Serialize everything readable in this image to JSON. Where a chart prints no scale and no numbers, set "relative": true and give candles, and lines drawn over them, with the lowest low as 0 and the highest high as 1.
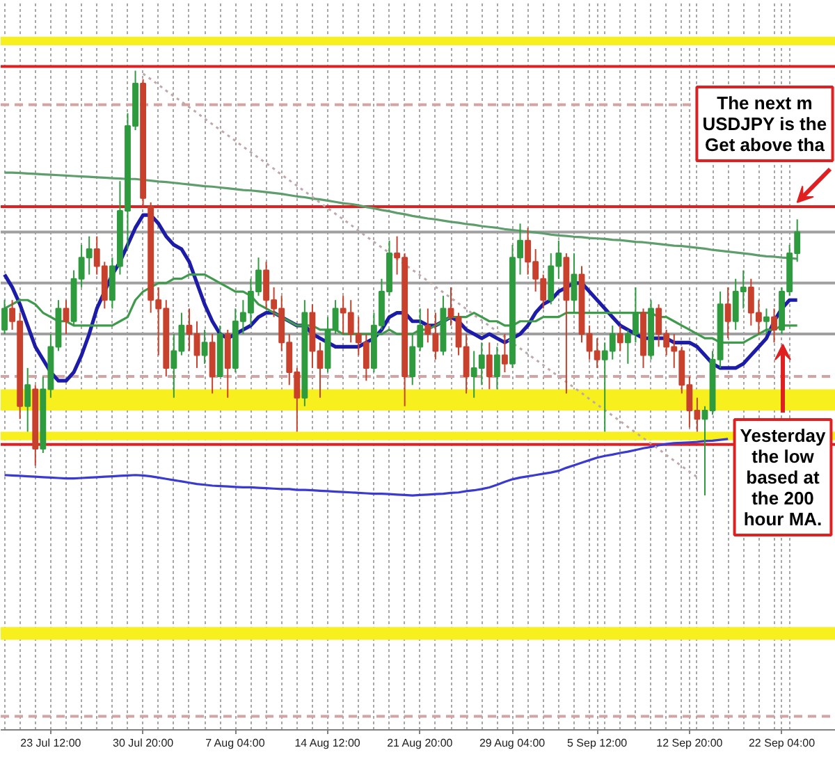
{
  "chart_data": {
    "type": "candlestick",
    "relative": true,
    "grid": "x",
    "categories": [
      null,
      null,
      null,
      null,
      null,
      null,
      "23 Jul 12:00",
      null,
      null,
      null,
      null,
      null,
      null,
      null,
      null,
      null,
      null,
      null,
      "30 Jul 20:00",
      null,
      null,
      null,
      null,
      null,
      null,
      null,
      null,
      null,
      null,
      null,
      "7 Aug 04:00",
      null,
      null,
      null,
      null,
      null,
      null,
      null,
      null,
      null,
      null,
      null,
      "14 Aug 12:00",
      null,
      null,
      null,
      null,
      null,
      null,
      null,
      null,
      null,
      null,
      null,
      "21 Aug 20:00",
      null,
      null,
      null,
      null,
      null,
      null,
      null,
      null,
      null,
      null,
      null,
      "29 Aug 04:00",
      null,
      null,
      null,
      null,
      null,
      null,
      null,
      null,
      null,
      null,
      "5 Sep 12:00",
      null,
      null,
      null,
      null,
      null,
      null,
      null,
      null,
      null,
      null,
      null,
      "12 Sep 20:00",
      null,
      null,
      null,
      null,
      null,
      null,
      null,
      null,
      null,
      null,
      null,
      "22 Sep 04:00",
      null,
      null
    ],
    "ohlc": [
      [
        0.39,
        0.46,
        0.38,
        0.44
      ],
      [
        0.44,
        0.46,
        0.39,
        0.41
      ],
      [
        0.41,
        0.43,
        0.18,
        0.21
      ],
      [
        0.21,
        0.3,
        0.15,
        0.26
      ],
      [
        0.25,
        0.26,
        0.07,
        0.11
      ],
      [
        0.11,
        0.28,
        0.1,
        0.25
      ],
      [
        0.25,
        0.38,
        0.23,
        0.35
      ],
      [
        0.35,
        0.46,
        0.34,
        0.44
      ],
      [
        0.44,
        0.46,
        0.38,
        0.41
      ],
      [
        0.41,
        0.53,
        0.4,
        0.51
      ],
      [
        0.51,
        0.59,
        0.49,
        0.56
      ],
      [
        0.56,
        0.61,
        0.52,
        0.58
      ],
      [
        0.58,
        0.61,
        0.52,
        0.54
      ],
      [
        0.54,
        0.55,
        0.44,
        0.46
      ],
      [
        0.46,
        0.56,
        0.44,
        0.54
      ],
      [
        0.54,
        0.74,
        0.52,
        0.67
      ],
      [
        0.67,
        0.9,
        0.58,
        0.87
      ],
      [
        0.87,
        1.0,
        0.86,
        0.97
      ],
      [
        0.97,
        0.98,
        0.68,
        0.7
      ],
      [
        0.68,
        0.69,
        0.43,
        0.46
      ],
      [
        0.46,
        0.49,
        0.33,
        0.44
      ],
      [
        0.44,
        0.46,
        0.28,
        0.3
      ],
      [
        0.3,
        0.38,
        0.23,
        0.34
      ],
      [
        0.34,
        0.43,
        0.33,
        0.4
      ],
      [
        0.4,
        0.44,
        0.34,
        0.38
      ],
      [
        0.38,
        0.41,
        0.3,
        0.33
      ],
      [
        0.33,
        0.39,
        0.31,
        0.36
      ],
      [
        0.36,
        0.38,
        0.24,
        0.28
      ],
      [
        0.28,
        0.4,
        0.28,
        0.38
      ],
      [
        0.38,
        0.39,
        0.23,
        0.3
      ],
      [
        0.3,
        0.44,
        0.29,
        0.41
      ],
      [
        0.41,
        0.46,
        0.38,
        0.43
      ],
      [
        0.43,
        0.51,
        0.4,
        0.48
      ],
      [
        0.48,
        0.56,
        0.47,
        0.53
      ],
      [
        0.53,
        0.55,
        0.44,
        0.46
      ],
      [
        0.46,
        0.49,
        0.42,
        0.44
      ],
      [
        0.44,
        0.47,
        0.34,
        0.36
      ],
      [
        0.36,
        0.38,
        0.26,
        0.29
      ],
      [
        0.29,
        0.3,
        0.15,
        0.23
      ],
      [
        0.23,
        0.46,
        0.21,
        0.43
      ],
      [
        0.43,
        0.45,
        0.3,
        0.34
      ],
      [
        0.34,
        0.36,
        0.23,
        0.3
      ],
      [
        0.3,
        0.42,
        0.29,
        0.39
      ],
      [
        0.39,
        0.46,
        0.38,
        0.44
      ],
      [
        0.44,
        0.47,
        0.38,
        0.43
      ],
      [
        0.43,
        0.46,
        0.36,
        0.38
      ],
      [
        0.38,
        0.42,
        0.33,
        0.36
      ],
      [
        0.36,
        0.38,
        0.27,
        0.3
      ],
      [
        0.3,
        0.43,
        0.29,
        0.4
      ],
      [
        0.4,
        0.51,
        0.39,
        0.48
      ],
      [
        0.48,
        0.6,
        0.47,
        0.57
      ],
      [
        0.57,
        0.61,
        0.52,
        0.56
      ],
      [
        0.56,
        0.57,
        0.21,
        0.28
      ],
      [
        0.28,
        0.38,
        0.26,
        0.35
      ],
      [
        0.35,
        0.44,
        0.34,
        0.4
      ],
      [
        0.4,
        0.44,
        0.36,
        0.38
      ],
      [
        0.38,
        0.43,
        0.32,
        0.34
      ],
      [
        0.34,
        0.47,
        0.33,
        0.44
      ],
      [
        0.44,
        0.49,
        0.4,
        0.42
      ],
      [
        0.42,
        0.43,
        0.33,
        0.35
      ],
      [
        0.35,
        0.38,
        0.24,
        0.28
      ],
      [
        0.28,
        0.34,
        0.23,
        0.3
      ],
      [
        0.3,
        0.36,
        0.26,
        0.33
      ],
      [
        0.33,
        0.36,
        0.25,
        0.28
      ],
      [
        0.28,
        0.35,
        0.25,
        0.33
      ],
      [
        0.33,
        0.38,
        0.29,
        0.31
      ],
      [
        0.31,
        0.59,
        0.3,
        0.56
      ],
      [
        0.56,
        0.64,
        0.52,
        0.6
      ],
      [
        0.6,
        0.63,
        0.52,
        0.55
      ],
      [
        0.55,
        0.58,
        0.48,
        0.51
      ],
      [
        0.51,
        0.52,
        0.44,
        0.46
      ],
      [
        0.46,
        0.57,
        0.45,
        0.54
      ],
      [
        0.54,
        0.6,
        0.51,
        0.57
      ],
      [
        0.56,
        0.57,
        0.24,
        0.46
      ],
      [
        0.46,
        0.57,
        0.43,
        0.52
      ],
      [
        0.52,
        0.54,
        0.36,
        0.38
      ],
      [
        0.38,
        0.4,
        0.32,
        0.34
      ],
      [
        0.34,
        0.37,
        0.3,
        0.32
      ],
      [
        0.32,
        0.36,
        0.15,
        0.34
      ],
      [
        0.34,
        0.4,
        0.32,
        0.38
      ],
      [
        0.38,
        0.4,
        0.34,
        0.36
      ],
      [
        0.36,
        0.39,
        0.31,
        0.38
      ],
      [
        0.38,
        0.49,
        0.36,
        0.43
      ],
      [
        0.43,
        0.44,
        0.3,
        0.33
      ],
      [
        0.33,
        0.46,
        0.32,
        0.44
      ],
      [
        0.44,
        0.45,
        0.35,
        0.38
      ],
      [
        0.38,
        0.39,
        0.33,
        0.35
      ],
      [
        0.35,
        0.38,
        0.3,
        0.34
      ],
      [
        0.34,
        0.35,
        0.24,
        0.26
      ],
      [
        0.26,
        0.28,
        0.16,
        0.2
      ],
      [
        0.2,
        0.23,
        0.15,
        0.18
      ],
      [
        0.18,
        0.21,
        0.0,
        0.2
      ],
      [
        0.2,
        0.34,
        0.19,
        0.32
      ],
      [
        0.32,
        0.48,
        0.3,
        0.45
      ],
      [
        0.45,
        0.49,
        0.37,
        0.41
      ],
      [
        0.41,
        0.51,
        0.39,
        0.48
      ],
      [
        0.48,
        0.53,
        0.44,
        0.49
      ],
      [
        0.49,
        0.51,
        0.4,
        0.43
      ],
      [
        0.43,
        0.46,
        0.38,
        0.41
      ],
      [
        0.41,
        0.44,
        0.38,
        0.42
      ],
      [
        0.42,
        0.44,
        0.36,
        0.39
      ],
      [
        0.39,
        0.49,
        0.38,
        0.48
      ],
      [
        0.48,
        0.59,
        0.47,
        0.57
      ],
      [
        0.57,
        0.65,
        0.55,
        0.62
      ]
    ],
    "colors": [
      "#2e9b3e",
      "#c8412c",
      "#c8412c",
      "#2e9b3e",
      "#c8412c",
      "#2e9b3e",
      "#2e9b3e",
      "#2e9b3e",
      "#c8412c",
      "#2e9b3e",
      "#2e9b3e",
      "#2e9b3e",
      "#c8412c",
      "#c8412c",
      "#2e9b3e",
      "#2e9b3e",
      "#2e9b3e",
      "#2e9b3e",
      "#c8412c",
      "#c8412c",
      "#c8412c",
      "#c8412c",
      "#2e9b3e",
      "#2e9b3e",
      "#c8412c",
      "#c8412c",
      "#2e9b3e",
      "#c8412c",
      "#2e9b3e",
      "#c8412c",
      "#2e9b3e",
      "#2e9b3e",
      "#2e9b3e",
      "#2e9b3e",
      "#c8412c",
      "#c8412c",
      "#c8412c",
      "#c8412c",
      "#c8412c",
      "#2e9b3e",
      "#c8412c",
      "#c8412c",
      "#2e9b3e",
      "#2e9b3e",
      "#c8412c",
      "#c8412c",
      "#c8412c",
      "#c8412c",
      "#2e9b3e",
      "#2e9b3e",
      "#2e9b3e",
      "#c8412c",
      "#c8412c",
      "#2e9b3e",
      "#2e9b3e",
      "#c8412c",
      "#c8412c",
      "#2e9b3e",
      "#c8412c",
      "#c8412c",
      "#c8412c",
      "#2e9b3e",
      "#2e9b3e",
      "#c8412c",
      "#2e9b3e",
      "#c8412c",
      "#2e9b3e",
      "#2e9b3e",
      "#c8412c",
      "#c8412c",
      "#c8412c",
      "#2e9b3e",
      "#2e9b3e",
      "#c8412c",
      "#2e9b3e",
      "#c8412c",
      "#c8412c",
      "#c8412c",
      "#2e9b3e",
      "#2e9b3e",
      "#c8412c",
      "#2e9b3e",
      "#2e9b3e",
      "#c8412c",
      "#2e9b3e",
      "#c8412c",
      "#c8412c",
      "#c8412c",
      "#c8412c",
      "#c8412c",
      "#c8412c",
      "#2e9b3e",
      "#2e9b3e",
      "#2e9b3e",
      "#c8412c",
      "#2e9b3e",
      "#2e9b3e",
      "#c8412c",
      "#c8412c",
      "#2e9b3e",
      "#c8412c",
      "#2e9b3e",
      "#2e9b3e",
      "#2e9b3e"
    ],
    "series": [
      {
        "type": "line",
        "color": "#1c1ca8",
        "values": [
          0.52,
          0.49,
          0.45,
          0.4,
          0.35,
          0.32,
          0.29,
          0.27,
          0.27,
          0.29,
          0.33,
          0.38,
          0.44,
          0.48,
          0.52,
          0.55,
          0.59,
          0.63,
          0.66,
          0.66,
          0.64,
          0.61,
          0.59,
          0.58,
          0.55,
          0.5,
          0.45,
          0.41,
          0.38,
          0.37,
          0.38,
          0.39,
          0.4,
          0.42,
          0.43,
          0.43,
          0.42,
          0.41,
          0.4,
          0.4,
          0.38,
          0.37,
          0.36,
          0.35,
          0.35,
          0.35,
          0.35,
          0.36,
          0.37,
          0.39,
          0.42,
          0.43,
          0.43,
          0.41,
          0.41,
          0.4,
          0.4,
          0.41,
          0.42,
          0.41,
          0.39,
          0.38,
          0.37,
          0.38,
          0.37,
          0.36,
          0.37,
          0.38,
          0.4,
          0.43,
          0.45,
          0.46,
          0.48,
          0.49,
          0.5,
          0.5,
          0.48,
          0.46,
          0.44,
          0.42,
          0.4,
          0.39,
          0.38,
          0.37,
          0.37,
          0.37,
          0.37,
          0.36,
          0.36,
          0.36,
          0.35,
          0.33,
          0.31,
          0.3,
          0.3,
          0.3,
          0.31,
          0.33,
          0.35,
          0.37,
          0.41,
          0.44,
          0.46,
          0.46
        ]
      },
      {
        "type": "line",
        "color": "#3f9a4c",
        "values": [
          0.44,
          0.45,
          0.46,
          0.46,
          0.45,
          0.43,
          0.42,
          0.41,
          0.41,
          0.4,
          0.4,
          0.4,
          0.4,
          0.4,
          0.4,
          0.41,
          0.42,
          0.46,
          0.48,
          0.49,
          0.5,
          0.5,
          0.51,
          0.51,
          0.52,
          0.52,
          0.52,
          0.51,
          0.5,
          0.49,
          0.48,
          0.48,
          0.47,
          0.45,
          0.44,
          0.43,
          0.42,
          0.41,
          0.4,
          0.4,
          0.4,
          0.39,
          0.39,
          0.39,
          0.38,
          0.38,
          0.38,
          0.38,
          0.38,
          0.38,
          0.39,
          0.38,
          0.38,
          0.38,
          0.39,
          0.39,
          0.4,
          0.41,
          0.42,
          0.42,
          0.42,
          0.43,
          0.42,
          0.41,
          0.41,
          0.4,
          0.4,
          0.41,
          0.41,
          0.41,
          0.42,
          0.42,
          0.42,
          0.43,
          0.43,
          0.43,
          0.43,
          0.43,
          0.43,
          0.43,
          0.43,
          0.43,
          0.43,
          0.43,
          0.43,
          0.42,
          0.42,
          0.41,
          0.4,
          0.39,
          0.38,
          0.37,
          0.37,
          0.36,
          0.36,
          0.36,
          0.36,
          0.37,
          0.38,
          0.39,
          0.39,
          0.4,
          0.4,
          0.4
        ]
      },
      {
        "type": "line",
        "color": "#5d9e6c",
        "values": [
          0.76,
          0.76,
          0.759,
          0.758,
          0.757,
          0.756,
          0.755,
          0.754,
          0.753,
          0.752,
          0.751,
          0.75,
          0.749,
          0.748,
          0.747,
          0.746,
          0.745,
          0.745,
          0.743,
          0.741,
          0.739,
          0.738,
          0.736,
          0.734,
          0.732,
          0.73,
          0.728,
          0.727,
          0.725,
          0.723,
          0.721,
          0.719,
          0.718,
          0.716,
          0.714,
          0.712,
          0.71,
          0.707,
          0.704,
          0.702,
          0.699,
          0.697,
          0.694,
          0.691,
          0.688,
          0.686,
          0.683,
          0.679,
          0.676,
          0.672,
          0.669,
          0.665,
          0.662,
          0.658,
          0.655,
          0.652,
          0.65,
          0.647,
          0.644,
          0.642,
          0.639,
          0.637,
          0.634,
          0.632,
          0.63,
          0.627,
          0.625,
          0.623,
          0.621,
          0.619,
          0.617,
          0.614,
          0.612,
          0.611,
          0.609,
          0.608,
          0.606,
          0.605,
          0.604,
          0.602,
          0.601,
          0.599,
          0.597,
          0.596,
          0.594,
          0.592,
          0.59,
          0.588,
          0.587,
          0.585,
          0.583,
          0.581,
          0.578,
          0.576,
          0.574,
          0.572,
          0.57,
          0.568,
          0.565,
          0.563,
          0.562,
          0.56,
          0.559,
          0.557
        ]
      },
      {
        "type": "line",
        "color": "#3a3ad0",
        "values": [
          0.048,
          0.047,
          0.046,
          0.045,
          0.044,
          0.043,
          0.042,
          0.041,
          0.04,
          0.04,
          0.041,
          0.042,
          0.043,
          0.044,
          0.045,
          0.046,
          0.047,
          0.048,
          0.047,
          0.045,
          0.042,
          0.039,
          0.036,
          0.033,
          0.03,
          0.027,
          0.025,
          0.023,
          0.022,
          0.021,
          0.02,
          0.019,
          0.019,
          0.018,
          0.017,
          0.016,
          0.015,
          0.015,
          0.013,
          0.013,
          0.012,
          0.011,
          0.01,
          0.009,
          0.008,
          0.007,
          0.006,
          0.005,
          0.004,
          0.004,
          0.003,
          0.002,
          0.001,
          0.0,
          0.001,
          0.002,
          0.003,
          0.004,
          0.006,
          0.007,
          0.01,
          0.012,
          0.015,
          0.019,
          0.025,
          0.032,
          0.038,
          0.042,
          0.045,
          0.048,
          0.051,
          0.054,
          0.058,
          0.065,
          0.071,
          0.077,
          0.083,
          0.089,
          0.093,
          0.096,
          0.1,
          0.103,
          0.107,
          0.111,
          0.114,
          0.118,
          0.121,
          0.123,
          0.124,
          0.125,
          0.126,
          0.128,
          0.129,
          0.131,
          0.133,
          null,
          null,
          null,
          null,
          null,
          null,
          null,
          null,
          null
        ]
      },
      {
        "type": "line",
        "color": "#c0a8a8",
        "line_style": "dotted",
        "values": [
          null,
          null,
          null,
          null,
          null,
          null,
          null,
          null,
          null,
          null,
          null,
          null,
          null,
          null,
          null,
          null,
          null,
          null,
          0.993,
          0.98,
          0.967,
          0.953,
          0.94,
          0.927,
          0.914,
          0.901,
          0.887,
          0.874,
          0.861,
          0.848,
          0.835,
          0.821,
          0.808,
          0.795,
          0.782,
          0.769,
          0.755,
          0.742,
          0.729,
          0.716,
          0.703,
          0.689,
          0.676,
          0.663,
          0.65,
          0.637,
          0.623,
          0.61,
          0.597,
          0.584,
          0.571,
          0.557,
          0.544,
          0.531,
          0.518,
          0.505,
          0.491,
          0.478,
          0.465,
          0.452,
          0.439,
          0.425,
          0.412,
          0.399,
          0.386,
          0.373,
          0.359,
          0.346,
          0.333,
          0.32,
          0.307,
          0.293,
          0.28,
          0.267,
          0.254,
          0.241,
          0.227,
          0.214,
          0.201,
          0.188,
          0.175,
          0.161,
          0.148,
          0.135,
          0.122,
          0.109,
          0.095,
          0.082,
          0.069,
          0.056,
          0.043,
          null,
          null,
          null,
          null,
          null,
          null,
          null,
          null,
          null,
          null,
          null,
          null,
          null
        ]
      }
    ],
    "ref_lines": [
      {
        "axis": "y",
        "value": 1.01,
        "color": "#e02020"
      },
      {
        "axis": "y",
        "value": 0.68,
        "color": "#e02020"
      },
      {
        "axis": "y",
        "value": 0.12,
        "color": "#e02020"
      },
      {
        "axis": "y",
        "value": 0.62,
        "color": "#a0a0a0"
      },
      {
        "axis": "y",
        "value": 0.5,
        "color": "#a0a0a0"
      },
      {
        "axis": "y",
        "value": 0.38,
        "color": "#a0a0a0"
      },
      {
        "axis": "y",
        "value": 0.92,
        "color": "#d4a4a4",
        "line_style": "dashed"
      },
      {
        "axis": "y",
        "value": 0.28,
        "color": "#d4a4a4",
        "line_style": "dashed"
      },
      {
        "axis": "y",
        "value": -0.52,
        "color": "#d4a4a4",
        "line_style": "dashed"
      }
    ],
    "bands": [
      {
        "axis": "y",
        "from": 1.06,
        "to": 1.08,
        "color": "#f7f01e"
      },
      {
        "axis": "y",
        "from": 0.2,
        "to": 0.25,
        "color": "#f7f01e"
      },
      {
        "axis": "y",
        "from": 0.13,
        "to": 0.15,
        "color": "#f7f01e"
      },
      {
        "axis": "y",
        "from": -0.34,
        "to": -0.31,
        "color": "#f7f01e"
      }
    ],
    "annotations": [
      {
        "text": "The next m\nUSDJPY is the\nGet above tha",
        "y": 0.69
      },
      "Yesterday\nthe low\nbased at\nthe 200\nhour MA."
    ]
  }
}
